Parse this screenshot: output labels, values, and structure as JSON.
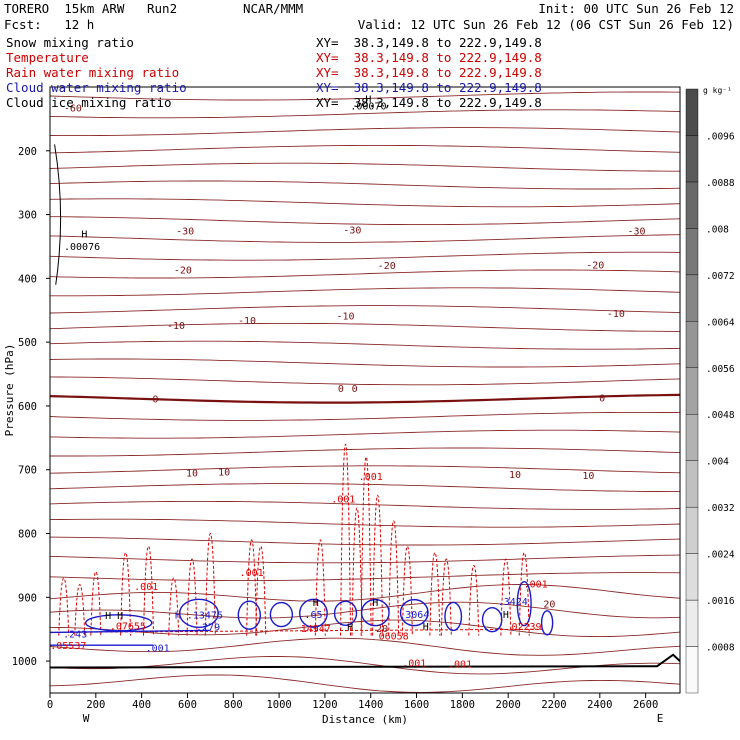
{
  "header": {
    "model": "TORERO  15km ARW   Run2",
    "org": "NCAR/MMM",
    "init": "Init: 00 UTC Sun 26 Feb 12",
    "fcst": "Fcst:   12 h",
    "valid": "Valid: 12 UTC Sun 26 Feb 12 (06 CST Sun 26 Feb 12)",
    "fields": [
      {
        "name": "Snow mixing ratio",
        "xy": "",
        "color": "#000000"
      },
      {
        "name": "Temperature",
        "xy": "XY=  38.3,149.8 to 222.9,149.8",
        "color": "#cc0000"
      },
      {
        "name": "Rain water mixing ratio",
        "xy": "XY=  38.3,149.8 to 222.9,149.8",
        "color": "#cc0000"
      },
      {
        "name": "Cloud water mixing ratio",
        "xy": "XY=  38.3,149.8 to 222.9,149.8",
        "color": "#1a1aaa"
      },
      {
        "name": "Cloud ice mixing ratio",
        "xy": "XY=  38.3,149.8 to 222.9,149.8",
        "color": "#000000"
      }
    ],
    "xy_first": "XY=  38.3,149.8 to 222.9,149.8"
  },
  "chart_data": {
    "type": "cross-section contour",
    "xlabel": "Distance (km)",
    "ylabel": "Pressure (hPa)",
    "xlim": [
      0,
      2750
    ],
    "ylim": [
      1050,
      100
    ],
    "x_ticks": [
      0,
      200,
      400,
      600,
      800,
      1000,
      1200,
      1400,
      1600,
      1800,
      2000,
      2200,
      2400,
      2600
    ],
    "y_ticks": [
      200,
      300,
      400,
      500,
      600,
      700,
      800,
      900,
      1000
    ],
    "x_end_labels": [
      "W",
      "E"
    ],
    "colorbar": {
      "unit": "g kg⁻¹",
      "ticks": [
        ".0008",
        ".0016",
        ".0024",
        ".0032",
        ".004",
        ".0048",
        ".0056",
        ".0064",
        ".0072",
        ".008",
        ".0088",
        ".0096"
      ],
      "max": 0.0104
    },
    "temperature_labels": [
      {
        "x": 100,
        "p": 132,
        "text": "-60"
      },
      {
        "x": 590,
        "p": 325,
        "text": "-30"
      },
      {
        "x": 1320,
        "p": 323,
        "text": "-30"
      },
      {
        "x": 2560,
        "p": 325,
        "text": "-30"
      },
      {
        "x": 580,
        "p": 386,
        "text": "-20"
      },
      {
        "x": 1470,
        "p": 379,
        "text": "-20"
      },
      {
        "x": 2380,
        "p": 378,
        "text": "-20"
      },
      {
        "x": 550,
        "p": 473,
        "text": "-10"
      },
      {
        "x": 860,
        "p": 465,
        "text": "-10"
      },
      {
        "x": 1290,
        "p": 458,
        "text": "-10"
      },
      {
        "x": 2470,
        "p": 454,
        "text": "-10"
      },
      {
        "x": 460,
        "p": 588,
        "text": "0"
      },
      {
        "x": 1270,
        "p": 572,
        "text": "0"
      },
      {
        "x": 1330,
        "p": 572,
        "text": "0"
      },
      {
        "x": 2410,
        "p": 587,
        "text": "0"
      },
      {
        "x": 620,
        "p": 704,
        "text": "10"
      },
      {
        "x": 760,
        "p": 703,
        "text": "10"
      },
      {
        "x": 2030,
        "p": 707,
        "text": "10"
      },
      {
        "x": 2350,
        "p": 708,
        "text": "10"
      },
      {
        "x": 1450,
        "p": 948,
        "text": "20"
      },
      {
        "x": 2180,
        "p": 910,
        "text": "20"
      }
    ],
    "rain_labels": [
      {
        "x": 1400,
        "p": 710,
        "text": ".001"
      },
      {
        "x": 1280,
        "p": 745,
        "text": ".001"
      },
      {
        "x": 880,
        "p": 860,
        "text": ".001"
      },
      {
        "x": 420,
        "p": 882,
        "text": ".001"
      },
      {
        "x": 2120,
        "p": 878,
        "text": ".001"
      },
      {
        "x": 1590,
        "p": 1002,
        "text": ".001"
      },
      {
        "x": 1790,
        "p": 1004,
        "text": ".001"
      },
      {
        "x": 1160,
        "p": 948,
        "text": "14947"
      },
      {
        "x": 1500,
        "p": 960,
        "text": "06058"
      },
      {
        "x": 340,
        "p": 944,
        "text": ".07655"
      },
      {
        "x": 80,
        "p": 975,
        "text": ".05537"
      },
      {
        "x": 2080,
        "p": 945,
        "text": "02239"
      }
    ],
    "cloud_water_labels": [
      {
        "x": 650,
        "p": 927,
        "text": "H .13475"
      },
      {
        "x": 1150,
        "p": 926,
        "text": ".65"
      },
      {
        "x": 1590,
        "p": 926,
        "text": ".3064"
      },
      {
        "x": 2020,
        "p": 906,
        "text": ".3424"
      },
      {
        "x": 690,
        "p": 946,
        "text": ".279"
      },
      {
        "x": 110,
        "p": 957,
        "text": ".243"
      },
      {
        "x": 470,
        "p": 979,
        "text": ".001"
      }
    ],
    "extrema": [
      {
        "x": 150,
        "p": 330,
        "text": "H"
      },
      {
        "x": 140,
        "p": 349,
        "text": ".00076"
      },
      {
        "x": 1390,
        "p": 118,
        "text": "H"
      },
      {
        "x": 1390,
        "p": 129,
        "text": ".00070"
      },
      {
        "x": 1310,
        "p": 946,
        "text": "H"
      },
      {
        "x": 1640,
        "p": 945,
        "text": "H"
      },
      {
        "x": 1990,
        "p": 926,
        "text": "H"
      },
      {
        "x": 1420,
        "p": 907,
        "text": "H"
      },
      {
        "x": 1160,
        "p": 907,
        "text": "H"
      },
      {
        "x": 280,
        "p": 928,
        "text": "H H"
      }
    ]
  }
}
